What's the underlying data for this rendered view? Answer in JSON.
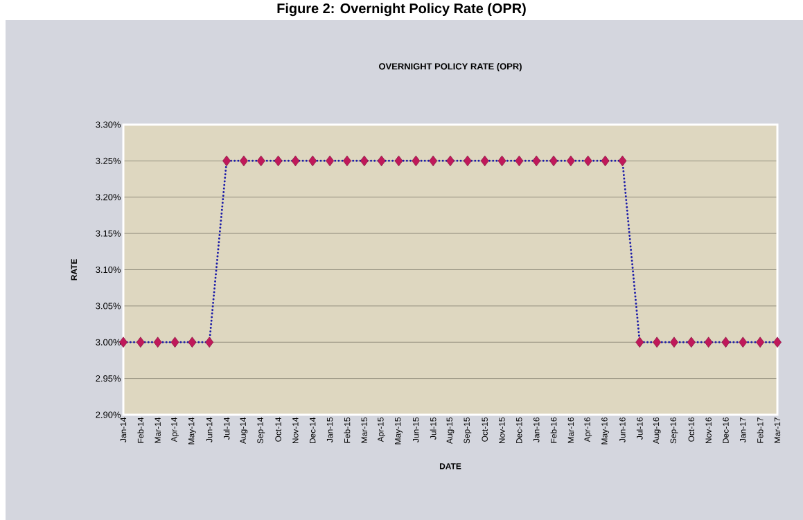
{
  "chart_data": {
    "type": "line",
    "title": "Figure 2: Overnight Policy Rate (OPR)",
    "subtitle": "OVERNIGHT POLICY RATE (OPR)",
    "xlabel": "DATE",
    "ylabel": "RATE",
    "categories": [
      "Jan-14",
      "Feb-14",
      "Mar-14",
      "Apr-14",
      "May-14",
      "Jun-14",
      "Jul-14",
      "Aug-14",
      "Sep-14",
      "Oct-14",
      "Nov-14",
      "Dec-14",
      "Jan-15",
      "Feb-15",
      "Mar-15",
      "Apr-15",
      "May-15",
      "Jun-15",
      "Jul-15",
      "Aug-15",
      "Sep-15",
      "Oct-15",
      "Nov-15",
      "Dec-15",
      "Jan-16",
      "Feb-16",
      "Mar-16",
      "Apr-16",
      "May-16",
      "Jun-16",
      "Jul-16",
      "Aug-16",
      "Sep-16",
      "Oct-16",
      "Nov-16",
      "Dec-16",
      "Jan-17",
      "Feb-17",
      "Mar-17"
    ],
    "series": [
      {
        "color": "#1c1ca8",
        "values": [
          3.0,
          3.0,
          3.0,
          3.0,
          3.0,
          3.0,
          3.25,
          3.25,
          3.25,
          3.25,
          3.25,
          3.25,
          3.25,
          3.25,
          3.25,
          3.25,
          3.25,
          3.25,
          3.25,
          3.25,
          3.25,
          3.25,
          3.25,
          3.25,
          3.25,
          3.25,
          3.25,
          3.25,
          3.25,
          3.25,
          3.0,
          3.0,
          3.0,
          3.0,
          3.0,
          3.0,
          3.0,
          3.0,
          3.0
        ]
      },
      {
        "type": "scatter",
        "marker": "diamond",
        "color": "#c0185a",
        "values": [
          3.0,
          3.0,
          3.0,
          3.0,
          3.0,
          3.0,
          3.25,
          3.25,
          3.25,
          3.25,
          3.25,
          3.25,
          3.25,
          3.25,
          3.25,
          3.25,
          3.25,
          3.25,
          3.25,
          3.25,
          3.25,
          3.25,
          3.25,
          3.25,
          3.25,
          3.25,
          3.25,
          3.25,
          3.25,
          3.25,
          3.0,
          3.0,
          3.0,
          3.0,
          3.0,
          3.0,
          3.0,
          3.0,
          3.0
        ]
      }
    ],
    "ylim": [
      2.9,
      3.3
    ],
    "yticks": [
      {
        "value": 2.9,
        "label": "2.90%"
      },
      {
        "value": 2.95,
        "label": "2.95%"
      },
      {
        "value": 3.0,
        "label": "3.00%"
      },
      {
        "value": 3.05,
        "label": "3.05%"
      },
      {
        "value": 3.1,
        "label": "3.10%"
      },
      {
        "value": 3.15,
        "label": "3.15%"
      },
      {
        "value": 3.2,
        "label": "3.20%"
      },
      {
        "value": 3.25,
        "label": "3.25%"
      },
      {
        "value": 3.3,
        "label": "3.30%"
      }
    ],
    "grid": "y",
    "line_style": "dotted"
  }
}
